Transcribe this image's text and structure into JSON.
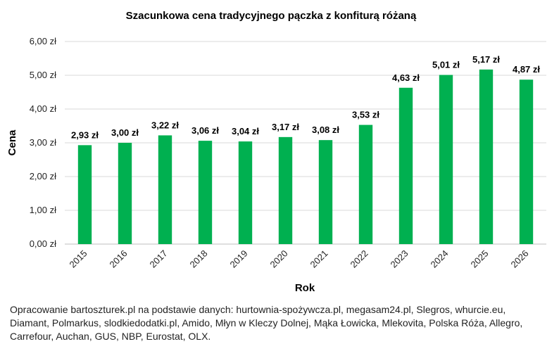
{
  "chart_data": {
    "type": "bar",
    "title": "Szacunkowa cena tradycyjnego pączka z konfiturą różaną",
    "xlabel": "Rok",
    "ylabel": "Cena",
    "categories": [
      "2015",
      "2016",
      "2017",
      "2018",
      "2019",
      "2020",
      "2021",
      "2022",
      "2023",
      "2024",
      "2025",
      "2026"
    ],
    "values": [
      2.93,
      3.0,
      3.22,
      3.06,
      3.04,
      3.17,
      3.08,
      3.53,
      4.63,
      5.01,
      5.17,
      4.87
    ],
    "data_labels": [
      "2,93 zł",
      "3,00 zł",
      "3,22 zł",
      "3,06 zł",
      "3,04 zł",
      "3,17 zł",
      "3,08 zł",
      "3,53 zł",
      "4,63 zł",
      "5,01 zł",
      "5,17 zł",
      "4,87 zł"
    ],
    "ylim": [
      0,
      6
    ],
    "yticks": [
      "0,00 zł",
      "1,00 zł",
      "2,00 zł",
      "3,00 zł",
      "4,00 zł",
      "5,00 zł",
      "6,00 zł"
    ],
    "grid": true,
    "bar_color": "#00b050"
  },
  "source_lines": [
    "Opracowanie bartoszturek.pl na podstawie danych: hurtownia-spożywcza.pl, megasam24.pl, Slegros, whurcie.eu,",
    "Diamant, Polmarkus, slodkiedodatki.pl, Amido, Młyn w Kleczy Dolnej, Mąka Łowicka, Mlekovita, Polska Róża, Allegro,",
    "Carrefour, Auchan, GUS, NBP, Eurostat, OLX."
  ]
}
